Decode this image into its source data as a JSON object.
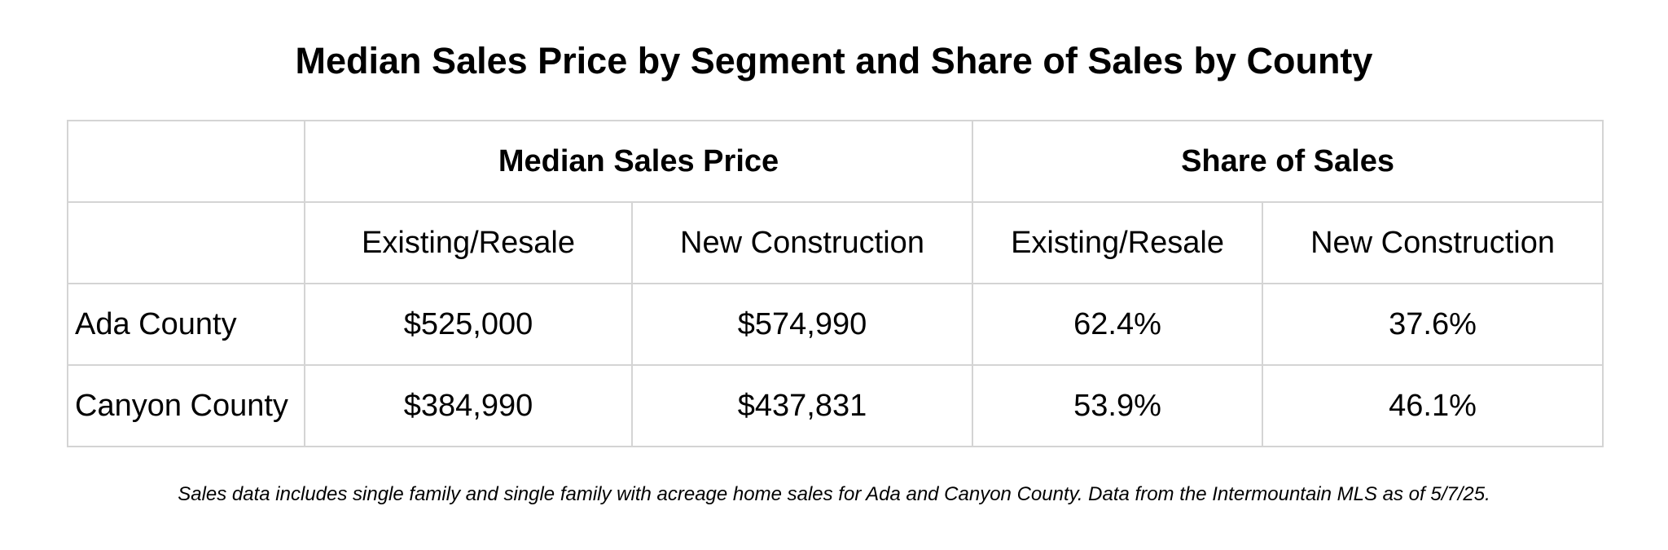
{
  "chart_data": {
    "type": "table",
    "title": "Median Sales Price by Segment and Share of Sales by County",
    "column_groups": [
      {
        "label": "Median Sales Price",
        "columns": [
          "Existing/Resale",
          "New Construction"
        ]
      },
      {
        "label": "Share of Sales",
        "columns": [
          "Existing/Resale",
          "New Construction"
        ]
      }
    ],
    "rows": [
      {
        "label": "Ada County",
        "values": [
          "$525,000",
          "$574,990",
          "62.4%",
          "37.6%"
        ]
      },
      {
        "label": "Canyon County",
        "values": [
          "$384,990",
          "$437,831",
          "53.9%",
          "46.1%"
        ]
      }
    ],
    "footnote": "Sales data includes single family and single family with acreage home sales for Ada and Canyon County. Data from the Intermountain MLS as of 5/7/25."
  }
}
